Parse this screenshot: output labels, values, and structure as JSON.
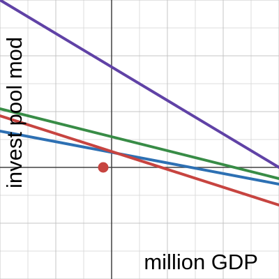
{
  "chart_data": {
    "type": "line",
    "xlabel": "million GDP",
    "ylabel": "invest pool mod",
    "xlim": [
      -4,
      6
    ],
    "ylim": [
      -4,
      6
    ],
    "grid": true,
    "minor_grid": true,
    "series": [
      {
        "color": "#6042a6",
        "x": [
          -4,
          6
        ],
        "y": [
          6.0,
          0.0
        ]
      },
      {
        "color": "#388c46",
        "x": [
          -4,
          6
        ],
        "y": [
          2.1,
          -0.4
        ]
      },
      {
        "color": "#2d70b3",
        "x": [
          -4,
          6
        ],
        "y": [
          1.3,
          -0.6
        ]
      },
      {
        "color": "#c74440",
        "x": [
          -4,
          6
        ],
        "y": [
          1.85,
          -1.35
        ]
      }
    ],
    "points": [
      {
        "color": "#c74440",
        "x": -0.3,
        "y": 0.0
      }
    ]
  }
}
